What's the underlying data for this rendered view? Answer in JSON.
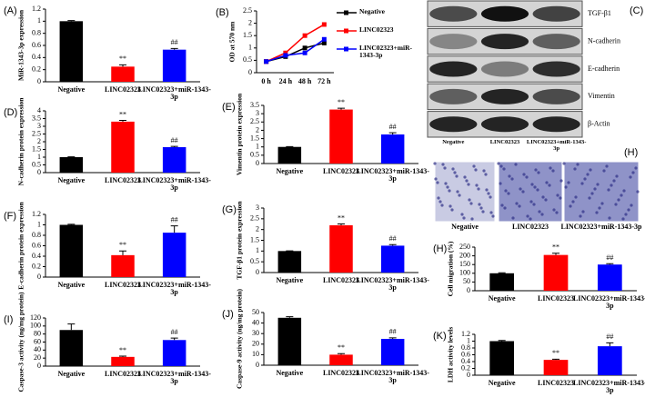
{
  "chart_data": [
    {
      "type": "bar",
      "label": "(A)",
      "ylabel": "MiR-1343-3p expression",
      "categories": [
        "Negative",
        "LINC02323",
        "LINC02323+miR-1343-3p"
      ],
      "values": [
        1,
        0.25,
        0.53
      ],
      "errors": [
        0.01,
        0.03,
        0.02
      ],
      "colors": [
        "#000000",
        "#ff0000",
        "#0000ff"
      ],
      "annotations": [
        null,
        "**",
        "##"
      ],
      "ylim": [
        0,
        1.2
      ],
      "yticks": [
        0,
        0.2,
        0.4,
        0.6,
        0.8,
        1,
        1.2
      ]
    },
    {
      "type": "line",
      "label": "(B)",
      "ylabel": "OD at 570 nm",
      "categories": [
        "0 h",
        "24 h",
        "48 h",
        "72 h"
      ],
      "series": [
        {
          "name": "Negative",
          "color": "#000000",
          "values": [
            0.45,
            0.65,
            1.0,
            1.2
          ]
        },
        {
          "name": "LINC02323",
          "color": "#ff0000",
          "values": [
            0.45,
            0.8,
            1.5,
            1.95
          ]
        },
        {
          "name": "LINC02323+miR-1343-3p",
          "color": "#0000ff",
          "values": [
            0.45,
            0.7,
            0.8,
            1.35
          ]
        }
      ],
      "ylim": [
        0,
        2.5
      ],
      "yticks": [
        0,
        0.5,
        1,
        1.5,
        2,
        2.5
      ]
    },
    {
      "type": "blot",
      "label": "(C)",
      "proteins": [
        "TGF-β1",
        "N-cadherin",
        "E-cadherin",
        "Vimentin",
        "β-Actin"
      ],
      "categories": [
        "Negative",
        "LINC02323",
        "LINC02323+miR-1343-3p"
      ]
    },
    {
      "type": "bar",
      "label": "(D)",
      "ylabel": "N-cadherin protein expression",
      "categories": [
        "Negative",
        "LINC02323",
        "LINC02323+miR-1343-3p"
      ],
      "values": [
        1,
        3.3,
        1.65
      ],
      "errors": [
        0.02,
        0.08,
        0.05
      ],
      "colors": [
        "#000000",
        "#ff0000",
        "#0000ff"
      ],
      "annotations": [
        null,
        "**",
        "##"
      ],
      "ylim": [
        0,
        4
      ],
      "yticks": [
        0,
        0.5,
        1,
        1.5,
        2,
        2.5,
        3,
        3.5,
        4
      ]
    },
    {
      "type": "bar",
      "label": "(E)",
      "ylabel": "Vimentin protein expression",
      "categories": [
        "Negative",
        "LINC02323",
        "LINC02323+miR-1343-3p"
      ],
      "values": [
        1,
        3.25,
        1.75
      ],
      "errors": [
        0.02,
        0.08,
        0.1
      ],
      "colors": [
        "#000000",
        "#ff0000",
        "#0000ff"
      ],
      "annotations": [
        null,
        "**",
        "##"
      ],
      "ylim": [
        0,
        3.5
      ],
      "yticks": [
        0,
        0.5,
        1,
        1.5,
        2,
        2.5,
        3,
        3.5
      ]
    },
    {
      "type": "bar",
      "label": "(F)",
      "ylabel": "E-cadherin protein expression",
      "categories": [
        "Negative",
        "LINC02323",
        "LINC02323+miR-1343-3p"
      ],
      "values": [
        1,
        0.42,
        0.85
      ],
      "errors": [
        0.01,
        0.08,
        0.13
      ],
      "colors": [
        "#000000",
        "#ff0000",
        "#0000ff"
      ],
      "annotations": [
        null,
        "**",
        "##"
      ],
      "ylim": [
        0,
        1.2
      ],
      "yticks": [
        0,
        0.2,
        0.4,
        0.6,
        0.8,
        1,
        1.2
      ]
    },
    {
      "type": "bar",
      "label": "(G)",
      "ylabel": "TGF-β1 protein expression",
      "categories": [
        "Negative",
        "LINC02323",
        "LINC02323+miR-1343-3p"
      ],
      "values": [
        1,
        2.2,
        1.25
      ],
      "errors": [
        0.01,
        0.06,
        0.05
      ],
      "colors": [
        "#000000",
        "#ff0000",
        "#0000ff"
      ],
      "annotations": [
        null,
        "**",
        "##"
      ],
      "ylim": [
        0,
        3
      ],
      "yticks": [
        0,
        0.5,
        1,
        1.5,
        2,
        2.5,
        3
      ]
    },
    {
      "type": "bar",
      "label": "(H)",
      "ylabel": "Cell migration (%)",
      "categories": [
        "Negative",
        "LINC02323",
        "LINC02323+miR-1343-3p"
      ],
      "values": [
        100,
        205,
        150
      ],
      "errors": [
        3,
        10,
        5
      ],
      "colors": [
        "#000000",
        "#ff0000",
        "#0000ff"
      ],
      "annotations": [
        null,
        "**",
        "##"
      ],
      "ylim": [
        0,
        250
      ],
      "yticks": [
        0,
        50,
        100,
        150,
        200,
        250
      ],
      "images": true
    },
    {
      "type": "bar",
      "label": "(I)",
      "ylabel": "Caspase-3 activity (ng/mg protein)",
      "categories": [
        "Negative",
        "LINC02323",
        "LINC02323+miR-1343-3p"
      ],
      "values": [
        90,
        23,
        65
      ],
      "errors": [
        15,
        2,
        5
      ],
      "colors": [
        "#000000",
        "#ff0000",
        "#0000ff"
      ],
      "annotations": [
        null,
        "**",
        "##"
      ],
      "ylim": [
        0,
        120
      ],
      "yticks": [
        0,
        20,
        40,
        60,
        80,
        100,
        120
      ]
    },
    {
      "type": "bar",
      "label": "(J)",
      "ylabel": "Caspase-9 activity (ng/mg protein)",
      "categories": [
        "Negative",
        "LINC02323",
        "LINC02323+miR-1343-3p"
      ],
      "values": [
        45,
        10,
        25
      ],
      "errors": [
        1,
        1,
        1
      ],
      "colors": [
        "#000000",
        "#ff0000",
        "#0000ff"
      ],
      "annotations": [
        null,
        "**",
        "##"
      ],
      "ylim": [
        0,
        50
      ],
      "yticks": [
        0,
        10,
        20,
        30,
        40,
        50
      ]
    },
    {
      "type": "bar",
      "label": "(K)",
      "ylabel": "LDH activity levels",
      "categories": [
        "Negative",
        "LINC02323",
        "LINC02323+miR-1343-3p"
      ],
      "values": [
        1,
        0.45,
        0.85
      ],
      "errors": [
        0.02,
        0.02,
        0.1
      ],
      "colors": [
        "#000000",
        "#ff0000",
        "#0000ff"
      ],
      "annotations": [
        null,
        "**",
        "##"
      ],
      "ylim": [
        0,
        1.2
      ],
      "yticks": [
        0,
        0.2,
        0.4,
        0.6,
        0.8,
        1,
        1.2
      ]
    }
  ]
}
